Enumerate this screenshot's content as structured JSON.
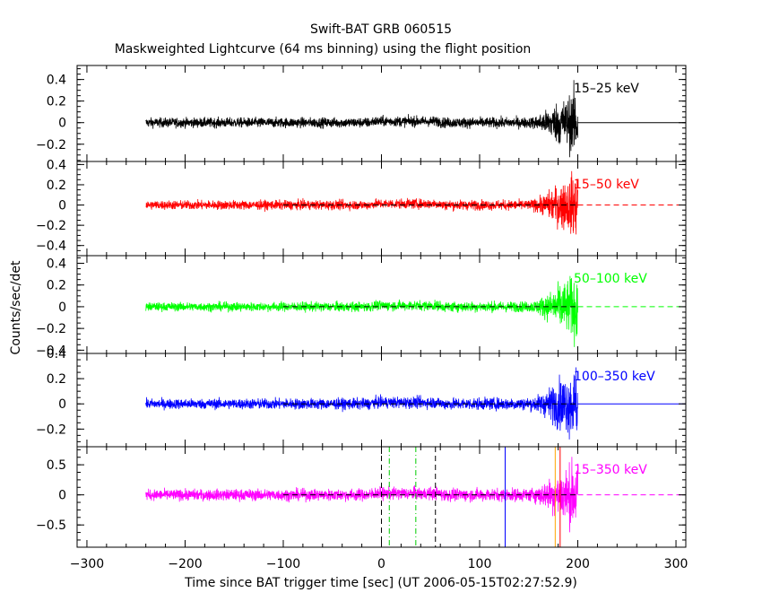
{
  "chart_data": {
    "type": "line",
    "title": "Swift-BAT GRB 060515",
    "subtitle": "Maskweighted Lightcurve (64 ms binning) using the flight position",
    "xlabel": "Time since BAT trigger time [sec] (UT 2006-05-15T02:27:52.9)",
    "ylabel": "Counts/sec/det",
    "xlim": [
      -310,
      310
    ],
    "x_ticks": [
      "−300",
      "−200",
      "−100",
      "0",
      "100",
      "200",
      "300"
    ],
    "x_tick_values": [
      -300,
      -200,
      -100,
      0,
      100,
      200,
      300
    ],
    "data_range": [
      -240,
      200
    ],
    "panels": [
      {
        "name": "15–25 keV",
        "color": "#000000",
        "ylim": [
          -0.36,
          0.53
        ],
        "y_ticks": [
          "0.4",
          "0.2",
          "0",
          "−0.2"
        ],
        "y_tick_values": [
          0.4,
          0.2,
          0,
          -0.2
        ],
        "noise_early": 0.04,
        "noise_late": 0.045,
        "burst_amp": 0.3,
        "baseline_line": "solid"
      },
      {
        "name": "15–50 keV",
        "color": "#ff0000",
        "ylim": [
          -0.5,
          0.43
        ],
        "y_ticks": [
          "0.4",
          "0.2",
          "0",
          "−0.2",
          "−0.4"
        ],
        "y_tick_values": [
          0.4,
          0.2,
          0,
          -0.2,
          -0.4
        ],
        "noise_early": 0.04,
        "noise_late": 0.045,
        "burst_amp": 0.32,
        "baseline_line": "dashed"
      },
      {
        "name": "50–100 keV",
        "color": "#00ff00",
        "ylim": [
          -0.43,
          0.47
        ],
        "y_ticks": [
          "0.4",
          "0.2",
          "0",
          "−0.2",
          "−0.4"
        ],
        "y_tick_values": [
          0.4,
          0.2,
          0,
          -0.2,
          -0.4
        ],
        "noise_early": 0.035,
        "noise_late": 0.045,
        "burst_amp": 0.3,
        "baseline_line": "dashed"
      },
      {
        "name": "100–350 keV",
        "color": "#0000ff",
        "ylim": [
          -0.34,
          0.4
        ],
        "y_ticks": [
          "0.4",
          "0.2",
          "0",
          "−0.2"
        ],
        "y_tick_values": [
          0.4,
          0.2,
          0,
          -0.2
        ],
        "noise_early": 0.035,
        "noise_late": 0.045,
        "burst_amp": 0.28,
        "baseline_line": "solid"
      },
      {
        "name": "15–350 keV",
        "color": "#ff00ff",
        "ylim": [
          -0.87,
          0.8
        ],
        "y_ticks": [
          "0.5",
          "0",
          "−0.5"
        ],
        "y_tick_values": [
          0.5,
          0,
          -0.5
        ],
        "noise_early": 0.08,
        "noise_late": 0.1,
        "burst_amp": 0.55,
        "baseline_line": "dashed"
      }
    ],
    "markers": [
      {
        "x": 0,
        "color": "#000000",
        "style": "dashed"
      },
      {
        "x": 55,
        "color": "#000000",
        "style": "dashed"
      },
      {
        "x": 8,
        "color": "#00cc00",
        "style": "dashdot"
      },
      {
        "x": 35,
        "color": "#00cc00",
        "style": "dashdot"
      },
      {
        "x": 126,
        "color": "#0000ff",
        "style": "solid"
      },
      {
        "x": 177,
        "color": "#ffa500",
        "style": "solid"
      },
      {
        "x": 182,
        "color": "#ff0000",
        "style": "solid"
      }
    ]
  }
}
